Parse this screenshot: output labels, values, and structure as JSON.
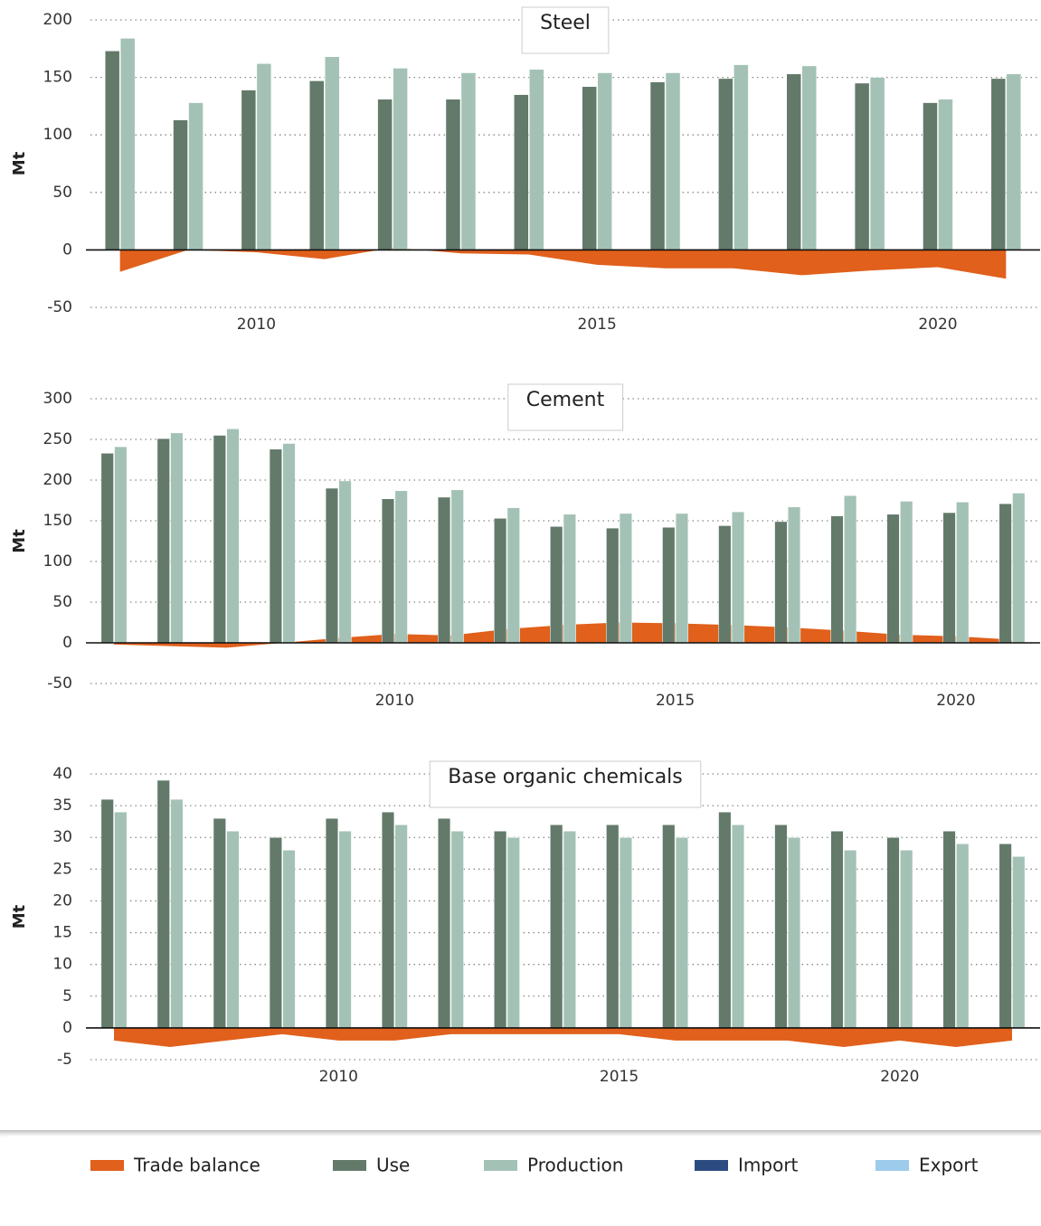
{
  "chart_data": [
    {
      "type": "bar",
      "title": "Steel",
      "ylabel": "Mt",
      "x": [
        2008,
        2009,
        2010,
        2011,
        2012,
        2013,
        2014,
        2015,
        2016,
        2017,
        2018,
        2019,
        2020,
        2021
      ],
      "xlim": [
        2007.5,
        2021.5
      ],
      "xticks": [
        2010,
        2015,
        2020
      ],
      "ylim": [
        -50,
        200
      ],
      "yticks": [
        -50,
        0,
        50,
        100,
        150,
        200
      ],
      "grid": true,
      "series": [
        {
          "name": "Trade balance",
          "color": "#e0601c",
          "kind": "area",
          "values": [
            -19,
            0,
            -2,
            -8,
            2,
            -3,
            -4,
            -13,
            -16,
            -16,
            -22,
            -18,
            -15,
            -25
          ]
        },
        {
          "name": "Use",
          "color": "#637a6a",
          "kind": "bar",
          "values": [
            173,
            113,
            139,
            147,
            131,
            131,
            135,
            142,
            146,
            149,
            153,
            145,
            128,
            149
          ]
        },
        {
          "name": "Production",
          "color": "#a3c2b5",
          "kind": "bar",
          "values": [
            184,
            128,
            162,
            168,
            158,
            154,
            157,
            154,
            154,
            161,
            160,
            150,
            131,
            153
          ]
        }
      ]
    },
    {
      "type": "bar",
      "title": "Cement",
      "ylabel": "Mt",
      "x": [
        2005,
        2006,
        2007,
        2008,
        2009,
        2010,
        2011,
        2012,
        2013,
        2014,
        2015,
        2016,
        2017,
        2018,
        2019,
        2020,
        2021
      ],
      "xlim": [
        2004.5,
        2021.5
      ],
      "xticks": [
        2010,
        2015,
        2020
      ],
      "ylim": [
        -50,
        300
      ],
      "yticks": [
        -50,
        0,
        50,
        100,
        150,
        200,
        250,
        300
      ],
      "grid": true,
      "series": [
        {
          "name": "Trade balance",
          "color": "#e0601c",
          "kind": "area",
          "values": [
            -2,
            -4,
            -6,
            0,
            6,
            11,
            9,
            17,
            22,
            25,
            24,
            22,
            19,
            15,
            10,
            8,
            4
          ]
        },
        {
          "name": "Use",
          "color": "#637a6a",
          "kind": "bar",
          "values": [
            233,
            251,
            255,
            238,
            190,
            177,
            179,
            153,
            143,
            141,
            142,
            144,
            149,
            156,
            158,
            160,
            171
          ]
        },
        {
          "name": "Production",
          "color": "#a3c2b5",
          "kind": "bar",
          "values": [
            241,
            258,
            263,
            245,
            199,
            187,
            188,
            166,
            158,
            159,
            159,
            161,
            167,
            181,
            174,
            173,
            184
          ]
        }
      ]
    },
    {
      "type": "bar",
      "title": "Base organic chemicals",
      "ylabel": "Mt",
      "x": [
        2006,
        2007,
        2008,
        2009,
        2010,
        2011,
        2012,
        2013,
        2014,
        2015,
        2016,
        2017,
        2018,
        2019,
        2020,
        2021,
        2022
      ],
      "xlim": [
        2005.5,
        2022.5
      ],
      "xticks": [
        2010,
        2015,
        2020
      ],
      "ylim": [
        -5,
        40
      ],
      "yticks": [
        -5,
        0,
        5,
        10,
        15,
        20,
        25,
        30,
        35,
        40
      ],
      "grid": true,
      "series": [
        {
          "name": "Trade balance",
          "color": "#e0601c",
          "kind": "area",
          "values": [
            -2,
            -3,
            -2,
            -1,
            -2,
            -2,
            -1,
            -1,
            -1,
            -1,
            -2,
            -2,
            -2,
            -3,
            -2,
            -3,
            -2
          ]
        },
        {
          "name": "Use",
          "color": "#637a6a",
          "kind": "bar",
          "values": [
            36,
            39,
            33,
            30,
            33,
            34,
            33,
            31,
            32,
            32,
            32,
            34,
            32,
            31,
            30,
            31,
            29
          ]
        },
        {
          "name": "Production",
          "color": "#a3c2b5",
          "kind": "bar",
          "values": [
            34,
            36,
            31,
            28,
            31,
            32,
            31,
            30,
            31,
            30,
            30,
            32,
            30,
            28,
            28,
            29,
            27
          ]
        }
      ]
    }
  ],
  "legend": [
    {
      "name": "Trade balance",
      "color": "#e0601c"
    },
    {
      "name": "Use",
      "color": "#637a6a"
    },
    {
      "name": "Production",
      "color": "#a3c2b5"
    },
    {
      "name": "Import",
      "color": "#2c4b80"
    },
    {
      "name": "Export",
      "color": "#9ccbeb"
    }
  ]
}
